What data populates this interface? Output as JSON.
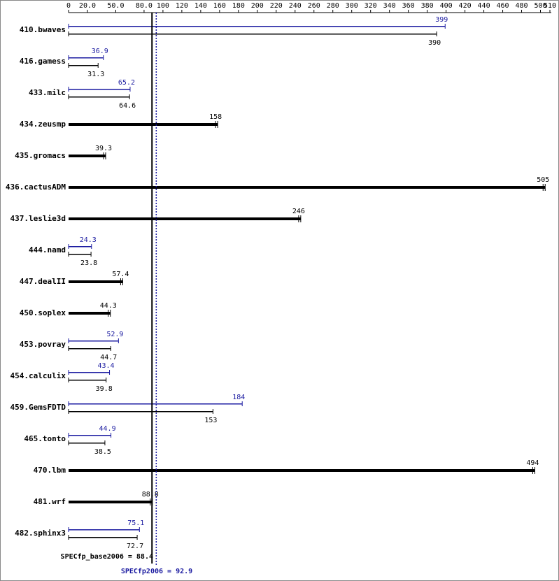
{
  "chart_data": {
    "type": "bar",
    "orientation": "horizontal",
    "categories": [
      "410.bwaves",
      "416.gamess",
      "433.milc",
      "434.zeusmp",
      "435.gromacs",
      "436.cactusADM",
      "437.leslie3d",
      "444.namd",
      "447.dealII",
      "450.soplex",
      "453.povray",
      "454.calculix",
      "459.GemsFDTD",
      "465.tonto",
      "470.lbm",
      "481.wrf",
      "482.sphinx3"
    ],
    "series": [
      {
        "name": "SPECfp_base2006",
        "color": "#000000",
        "values": [
          390,
          31.3,
          64.6,
          158,
          39.3,
          505,
          246,
          23.8,
          57.4,
          44.3,
          44.7,
          39.8,
          153,
          38.5,
          494,
          88.8,
          72.7
        ]
      },
      {
        "name": "SPECfp2006",
        "color": "#1a1aa0",
        "values": [
          399,
          36.9,
          65.2,
          null,
          null,
          null,
          null,
          24.3,
          null,
          null,
          52.9,
          43.4,
          184,
          44.9,
          null,
          null,
          75.1
        ]
      }
    ],
    "xlim": [
      0,
      510
    ],
    "xticks": [
      0,
      {
        "value": 20,
        "label": "20.0"
      },
      {
        "value": 50,
        "label": "50.0"
      },
      {
        "value": 80,
        "label": "80.0"
      },
      100,
      120,
      140,
      160,
      180,
      200,
      220,
      240,
      260,
      280,
      300,
      320,
      340,
      360,
      380,
      400,
      420,
      440,
      460,
      480,
      500,
      510
    ],
    "base_mean": 88.4,
    "base_summary": "SPECfp_base2006 = 88.4",
    "peak_mean": 92.9,
    "peak_summary": "SPECfp2006 = 92.9"
  }
}
